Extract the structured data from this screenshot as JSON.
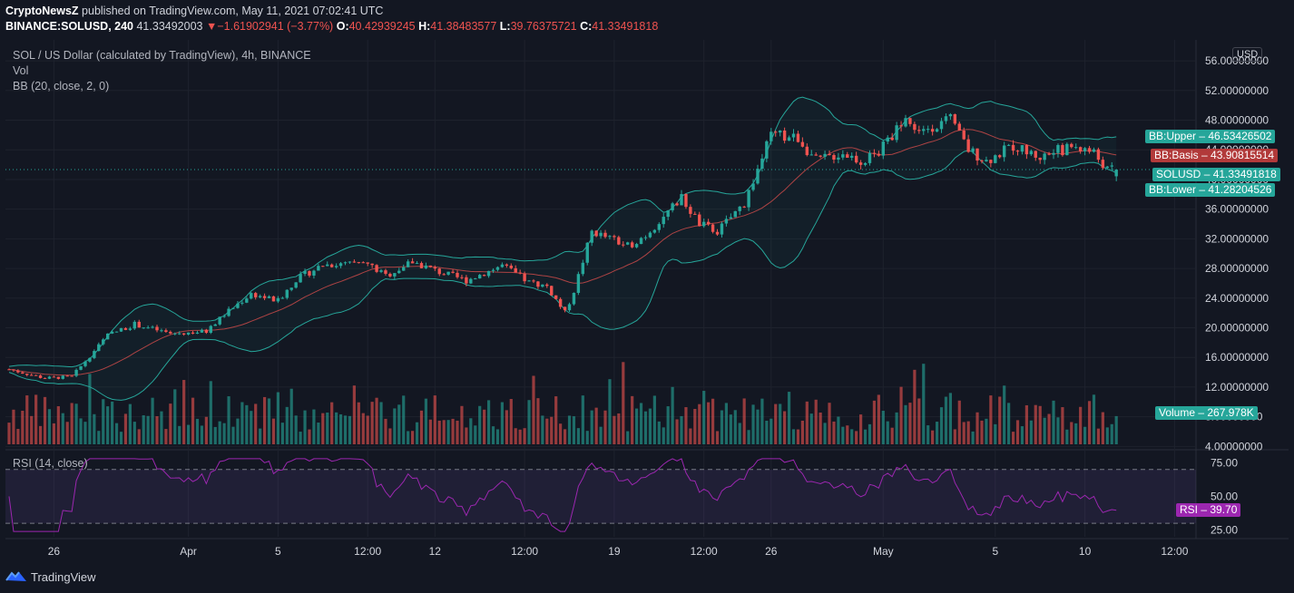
{
  "header": {
    "publisher": "CryptoNewsZ",
    "published_text": " published on TradingView.com, May 11, 2021 07:02:41 UTC",
    "symbol": "BINANCE:SOLUSD, 240",
    "last": "41.33492003",
    "change_arrow": "▼",
    "change": "−1.61902941 (−3.77%)",
    "o_label": "O:",
    "o_value": "40.42939245",
    "h_label": "H:",
    "h_value": "41.38483577",
    "l_label": "L:",
    "l_value": "39.76375721",
    "c_label": "C:",
    "c_value": "41.33491818"
  },
  "legend": {
    "main": "SOL / US Dollar (calculated by TradingView), 4h, BINANCE",
    "vol": "Vol",
    "bb": "BB (20, close, 2, 0)",
    "rsi": "RSI (14, close)"
  },
  "currency": "USD",
  "badges": {
    "bb_upper": {
      "label": "BB:Upper",
      "value": "46.53426502"
    },
    "bb_basis": {
      "label": "BB:Basis",
      "value": "43.90815514"
    },
    "solusd": {
      "label": "SOLUSD",
      "value": "41.33491818"
    },
    "bb_lower": {
      "label": "BB:Lower",
      "value": "41.28204526"
    },
    "volume": {
      "label": "Volume",
      "value": "267.978K"
    },
    "rsi": {
      "label": "RSI",
      "value": "39.70"
    }
  },
  "colors": {
    "up": "#26a69a",
    "down": "#ef5350",
    "bb_band": "#26a69a",
    "bb_basis": "#ef5350",
    "rsi_line": "#9c27b0",
    "grid": "#1e222d",
    "text": "#d1d4dc",
    "background": "#131722"
  },
  "footer": {
    "brand": "TradingView"
  },
  "chart_data": {
    "type": "candlestick",
    "timeframe": "4h",
    "price_axis": [
      "56.00000000",
      "52.00000000",
      "48.00000000",
      "44.00000000",
      "40.00000000",
      "36.00000000",
      "32.00000000",
      "28.00000000",
      "24.00000000",
      "20.00000000",
      "16.00000000",
      "12.00000000",
      "8.00000000",
      "4.00000000"
    ],
    "price_ticks": [
      56,
      52,
      48,
      44,
      40,
      36,
      32,
      28,
      24,
      20,
      16,
      12,
      8,
      4
    ],
    "ylim": [
      3.8,
      57.6
    ],
    "rsi_axis": [
      "75.00",
      "50.00",
      "25.00"
    ],
    "rsi_ticks": [
      75,
      50,
      25
    ],
    "rsi_ylim": [
      20,
      82
    ],
    "rsi_bands": [
      70,
      30
    ],
    "time_axis": [
      "26",
      "Apr",
      "5",
      "12:00",
      "12",
      "12:00",
      "19",
      "12:00",
      "26",
      "May",
      "5",
      "10",
      "12:00"
    ],
    "time_tick_bars": [
      10,
      40,
      60,
      80,
      95,
      115,
      135,
      155,
      170,
      195,
      220,
      240,
      260
    ],
    "anchors": [
      [
        0,
        14.4
      ],
      [
        8,
        13.2
      ],
      [
        14,
        13.4
      ],
      [
        22,
        19.0
      ],
      [
        28,
        20.5
      ],
      [
        36,
        19.2
      ],
      [
        44,
        19.5
      ],
      [
        48,
        21.8
      ],
      [
        54,
        24.6
      ],
      [
        60,
        23.6
      ],
      [
        64,
        26.5
      ],
      [
        70,
        28.5
      ],
      [
        80,
        28.6
      ],
      [
        84,
        27.0
      ],
      [
        90,
        28.9
      ],
      [
        96,
        27.5
      ],
      [
        102,
        26.4
      ],
      [
        110,
        28.4
      ],
      [
        116,
        26.1
      ],
      [
        120,
        25.6
      ],
      [
        124,
        22.0
      ],
      [
        126,
        25.0
      ],
      [
        130,
        33.0
      ],
      [
        138,
        31.0
      ],
      [
        142,
        32.5
      ],
      [
        150,
        37.5
      ],
      [
        154,
        34.0
      ],
      [
        158,
        33.0
      ],
      [
        164,
        36.8
      ],
      [
        170,
        46.0
      ],
      [
        176,
        45.6
      ],
      [
        180,
        42.5
      ],
      [
        186,
        43.6
      ],
      [
        190,
        42.5
      ],
      [
        194,
        43.6
      ],
      [
        200,
        48.5
      ],
      [
        202,
        46.5
      ],
      [
        210,
        48.0
      ],
      [
        214,
        44.0
      ],
      [
        218,
        42.5
      ],
      [
        224,
        44.5
      ],
      [
        230,
        43.0
      ],
      [
        234,
        43.9
      ],
      [
        238,
        44.5
      ],
      [
        242,
        43.6
      ],
      [
        245,
        41.3
      ]
    ],
    "bb_upper_value": 46.53426502,
    "bb_basis_value": 43.90815514,
    "bb_lower_value": 41.28204526,
    "last_close": 41.33491818,
    "last_volume": "267.978K",
    "last_rsi": 39.7
  }
}
